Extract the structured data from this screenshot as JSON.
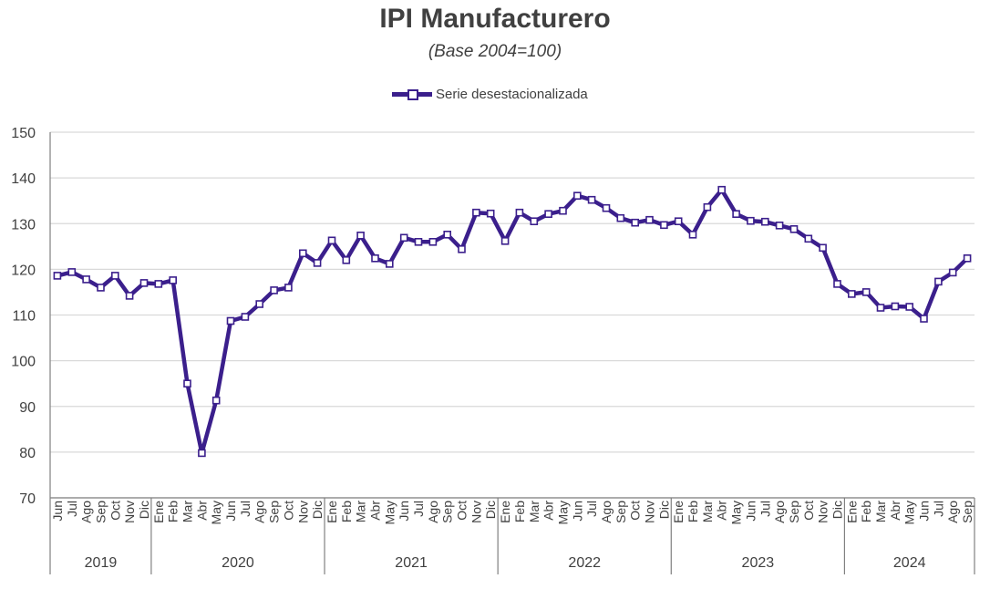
{
  "chart_data": {
    "type": "line",
    "title": "IPI Manufacturero",
    "subtitle": "(Base 2004=100)",
    "ylim": [
      70,
      150
    ],
    "yticks": [
      70,
      80,
      90,
      100,
      110,
      120,
      130,
      140,
      150
    ],
    "grid": true,
    "legend_position": "top-center",
    "colors": {
      "series": "#3b1f8c",
      "grid": "#d9d9d9",
      "axis": "#808080",
      "text": "#404040"
    },
    "categories": [
      "Jun",
      "Jul",
      "Ago",
      "Sep",
      "Oct",
      "Nov",
      "Dic",
      "Ene",
      "Feb",
      "Mar",
      "Abr",
      "May",
      "Jun",
      "Jul",
      "Ago",
      "Sep",
      "Oct",
      "Nov",
      "Dic",
      "Ene",
      "Feb",
      "Mar",
      "Abr",
      "May",
      "Jun",
      "Jul",
      "Ago",
      "Sep",
      "Oct",
      "Nov",
      "Dic",
      "Ene",
      "Feb",
      "Mar",
      "Abr",
      "May",
      "Jun",
      "Jul",
      "Ago",
      "Sep",
      "Oct",
      "Nov",
      "Dic",
      "Ene",
      "Feb",
      "Mar",
      "Abr",
      "May",
      "Jun",
      "Jul",
      "Ago",
      "Sep",
      "Oct",
      "Nov",
      "Dic",
      "Ene",
      "Feb",
      "Mar",
      "Abr",
      "May",
      "Jun",
      "Jul",
      "Ago",
      "Sep"
    ],
    "years": [
      {
        "label": "2019",
        "count": 7
      },
      {
        "label": "2020",
        "count": 12
      },
      {
        "label": "2021",
        "count": 12
      },
      {
        "label": "2022",
        "count": 12
      },
      {
        "label": "2023",
        "count": 12
      },
      {
        "label": "2024",
        "count": 9
      }
    ],
    "series": [
      {
        "name": "Serie desestacionalizada",
        "values": [
          118.6,
          119.4,
          117.8,
          116.0,
          118.6,
          114.2,
          117.0,
          116.8,
          117.6,
          95.0,
          79.8,
          91.3,
          108.7,
          109.6,
          112.4,
          115.4,
          116.0,
          123.5,
          121.4,
          126.3,
          122.0,
          127.4,
          122.4,
          121.2,
          126.9,
          126.0,
          126.0,
          127.6,
          124.4,
          132.4,
          132.2,
          126.2,
          132.4,
          130.5,
          132.1,
          132.8,
          136.1,
          135.2,
          133.4,
          131.2,
          130.2,
          130.8,
          129.7,
          130.5,
          127.6,
          133.6,
          137.4,
          132.1,
          130.6,
          130.4,
          129.6,
          128.8,
          126.7,
          124.7,
          116.8,
          114.6,
          115.0,
          111.6,
          111.9,
          111.8,
          109.2,
          117.3,
          119.3,
          122.4
        ]
      }
    ]
  }
}
